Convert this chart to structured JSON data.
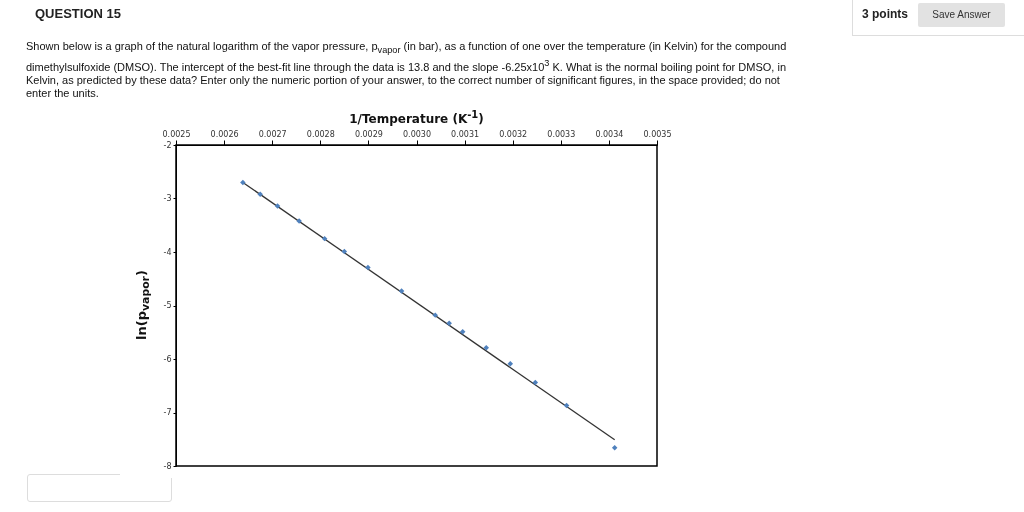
{
  "chart_data": {
    "type": "scatter",
    "title": "QUESTION 15",
    "annotations": [
      "3 points",
      "Save Answer",
      "Shown below is a graph of the natural logarithm of the vapor pressure, p$_{vapor}$ (in bar), as a function of one over the temperature (in Kelvin) for the compound dimethylsulfoxide (DMSO).  The intercept of the best-fit line through the data is 13.8 and the slope -6.25x10$^{3}$ K.  What is the normal boiling point for DMSO, in Kelvin, as predicted by these data?  Enter only the numeric portion of your answer, to the correct number of significant figures, in the space provided; do not enter the units."
    ],
    "xlabel": "1/Temperature (K$^{-1}$)",
    "ylabel": "ln(p$_{vapor}$)",
    "xlim": [
      0.0025,
      0.0035
    ],
    "xticks": [
      0.0025,
      0.0026,
      0.0027,
      0.0028,
      0.0029,
      {
        "value": 0.003,
        "label": "0.0030"
      },
      0.0031,
      0.0032,
      0.0033,
      0.0034,
      0.0035
    ],
    "ylim": [
      -8,
      -2
    ],
    "yticks": [
      -8,
      -7,
      -6,
      -5,
      -4,
      -3,
      -2
    ],
    "grid": false,
    "marker": "diamond",
    "series": [
      {
        "color": "#4f81bd",
        "x": [
          0.002639,
          0.002675,
          0.002711,
          0.002756,
          0.002809,
          0.00285,
          0.002899,
          0.002969,
          0.003039,
          0.003068,
          0.003096,
          0.003145,
          0.003195,
          0.003247,
          0.003312,
          0.003412
        ],
        "values": [
          -2.7,
          -2.92,
          -3.14,
          -3.42,
          -3.75,
          -3.99,
          -4.29,
          -4.73,
          -5.18,
          -5.33,
          -5.49,
          -5.79,
          -6.09,
          -6.44,
          -6.87,
          -7.66
        ]
      },
      {
        "type": "line",
        "color": "#333333",
        "line_style": "solid",
        "marker": "none",
        "x": [
          0.002639,
          0.003412
        ],
        "values": [
          -2.7,
          -7.51
        ]
      }
    ]
  }
}
